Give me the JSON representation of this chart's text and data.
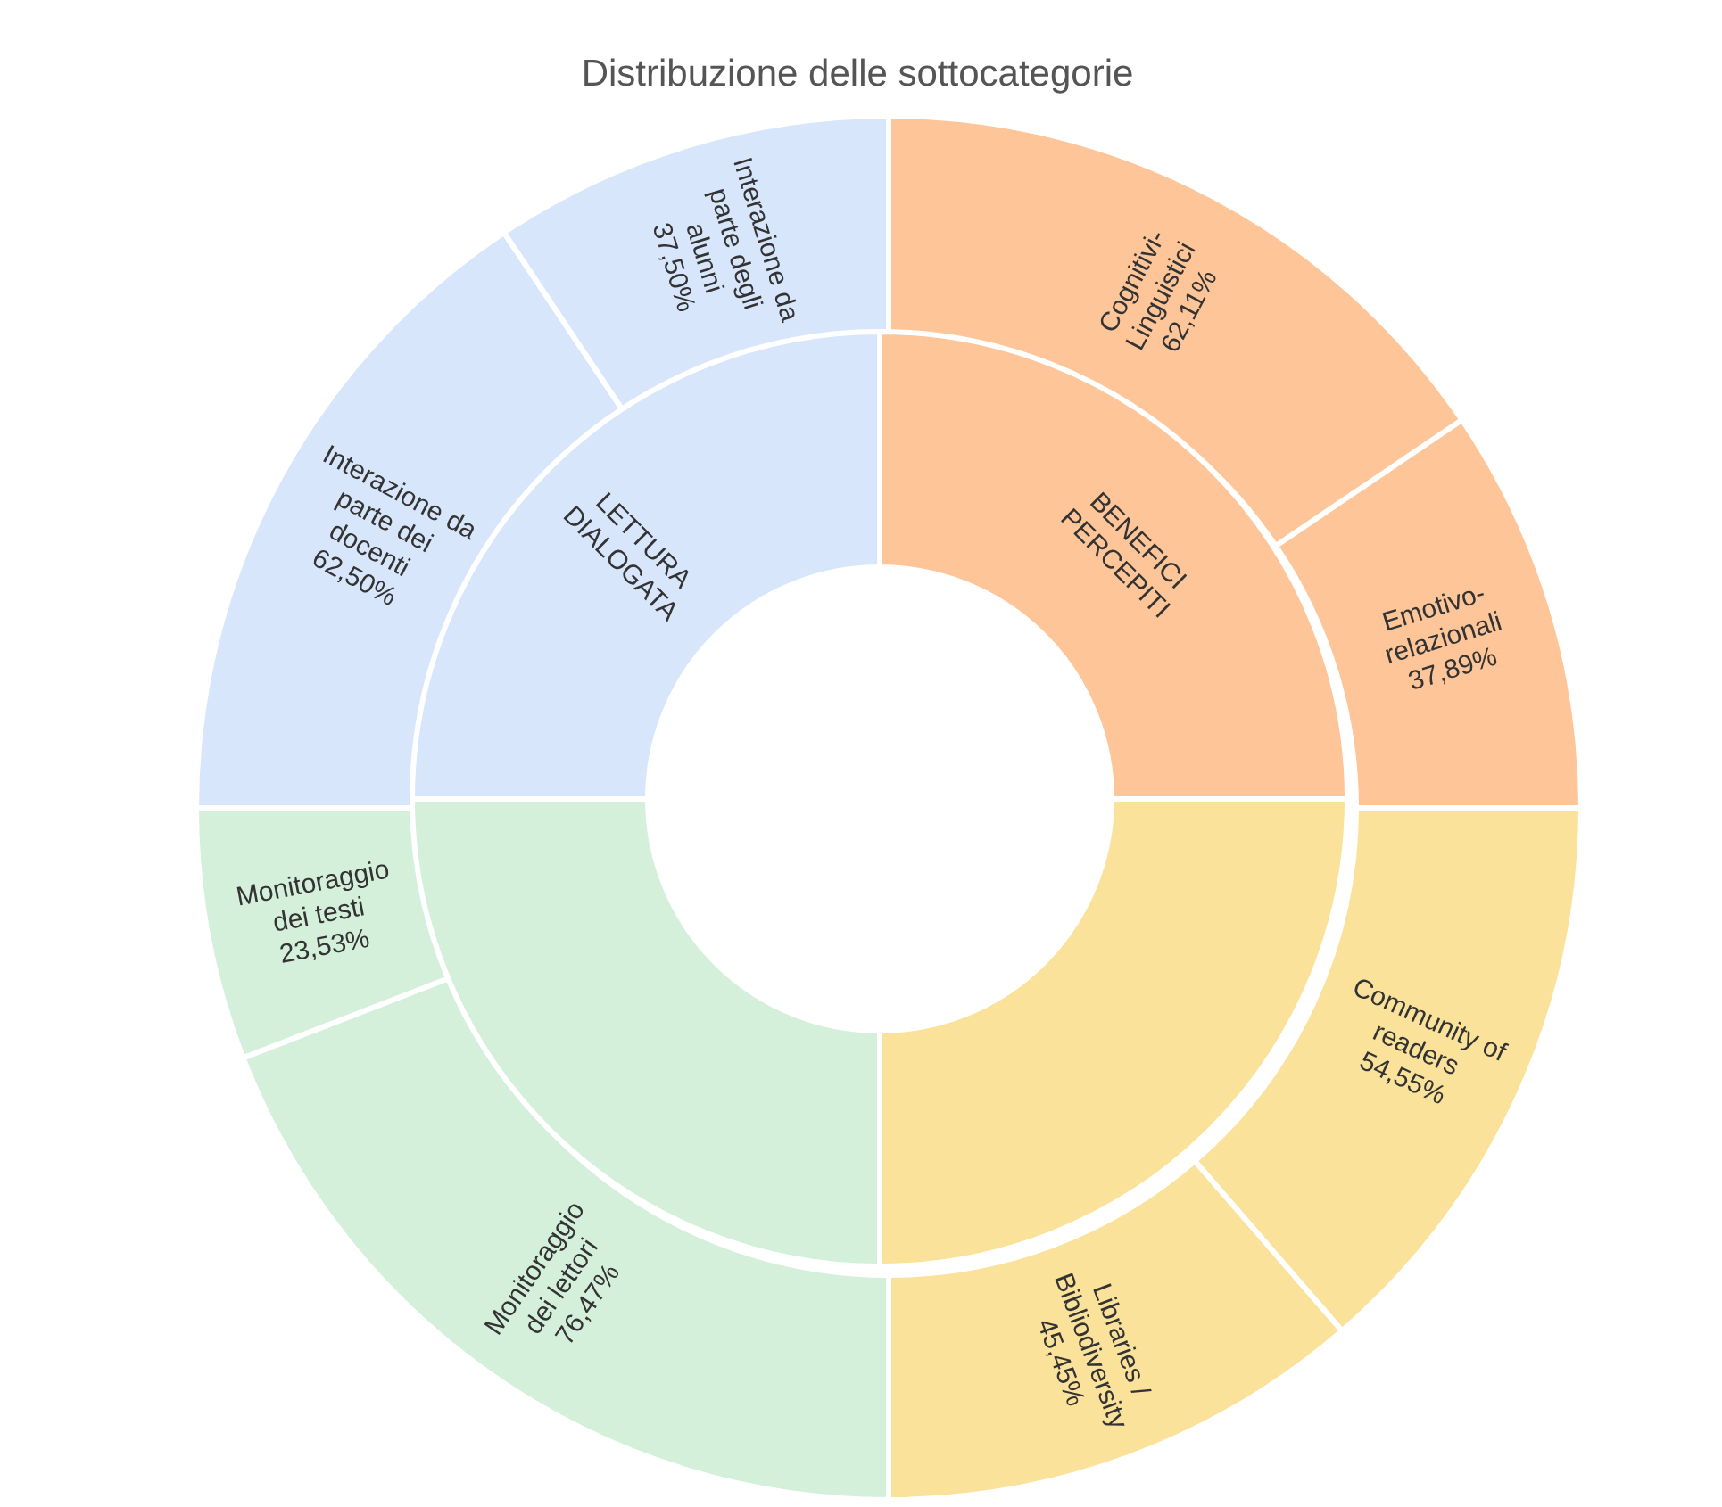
{
  "chart_data": {
    "type": "other",
    "title": "Distribuzione delle sottocategorie",
    "categories": [
      "Cognitivi-Linguistici",
      "Emotivo-relazionali",
      "Community of readers",
      "Libraries / Bibliodiversity",
      "Monitoraggio dei lettori",
      "Monitoraggio dei testi",
      "Interazione da parte dei docenti",
      "Interazione da parte degli alunni"
    ],
    "values": [
      62.11,
      37.89,
      54.55,
      45.45,
      76.47,
      23.53,
      62.5,
      37.5
    ],
    "value_labels": [
      "62,11%",
      "37,89%",
      "54,55%",
      "45,45%",
      "76,47%",
      "23,53%",
      "62,50%",
      "37,50%"
    ],
    "colors": [
      "#fdc598",
      "#fdc598",
      "#fbe29b",
      "#fbe29b",
      "#d4f0db",
      "#d4f0db",
      "#d8e6fb",
      "#d8e6fb"
    ],
    "annotations": [
      "BENEFICI PERCEPITI",
      null,
      null,
      "LETTURA DIALOGATA"
    ]
  }
}
